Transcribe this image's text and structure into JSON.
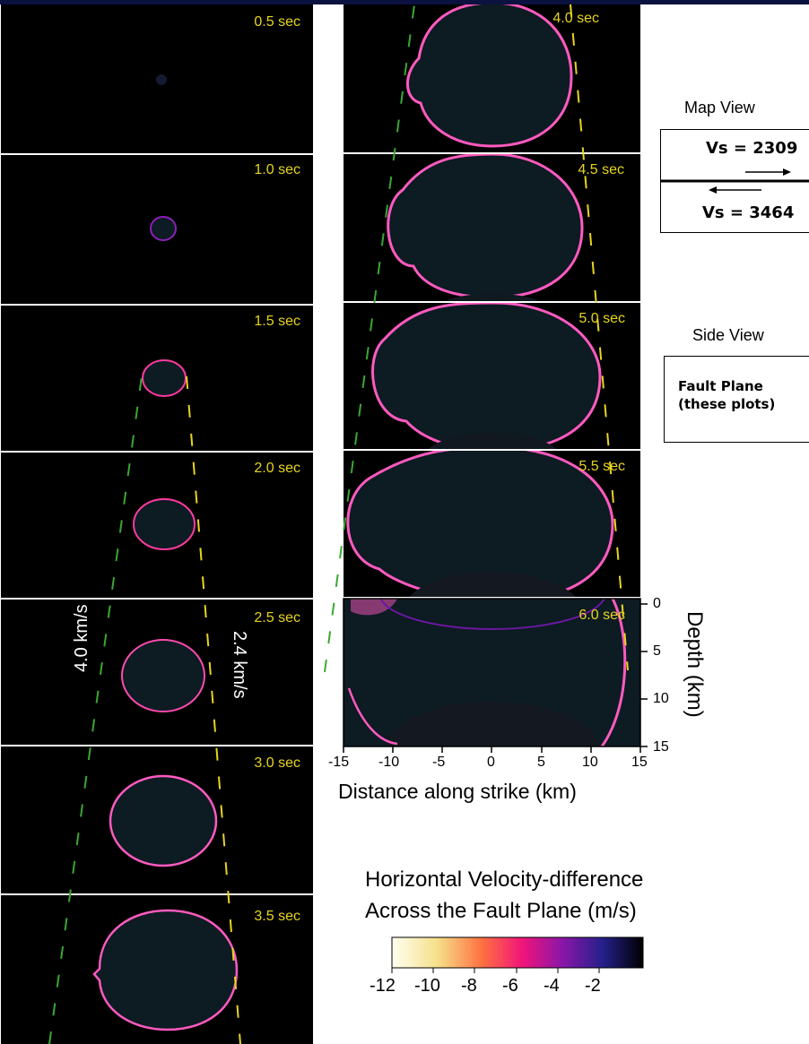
{
  "frames_left": [
    {
      "label": "0.5 sec"
    },
    {
      "label": "1.0 sec"
    },
    {
      "label": "1.5 sec"
    },
    {
      "label": "2.0 sec"
    },
    {
      "label": "2.5 sec"
    },
    {
      "label": "3.0 sec"
    },
    {
      "label": "3.5 sec"
    }
  ],
  "frames_right": [
    {
      "label": "4.0 sec"
    },
    {
      "label": "4.5 sec"
    },
    {
      "label": "5.0 sec"
    },
    {
      "label": "5.5 sec"
    },
    {
      "label": "6.0 sec"
    }
  ],
  "speed_labels": {
    "fast": "4.0 km/s",
    "slow": "2.4 km/s"
  },
  "axes": {
    "x_ticks": [
      "-15",
      "-10",
      "-5",
      "0",
      "5",
      "10",
      "15"
    ],
    "x_title": "Distance along strike (km)",
    "y_ticks": [
      "0",
      "5",
      "10",
      "15"
    ],
    "y_title": "Depth (km)"
  },
  "map_view": {
    "title": "Map View",
    "upper": "Vs = 2309",
    "lower": "Vs = 3464"
  },
  "side_view": {
    "title": "Side View",
    "line1": "Fault Plane",
    "line2": "(these plots)"
  },
  "colorbar": {
    "title_line1": "Horizontal Velocity-difference",
    "title_line2": "Across the Fault Plane (m/s)",
    "ticks": [
      "-12",
      "-10",
      "-8",
      "-6",
      "-4",
      "-2"
    ],
    "colors": [
      "#fffff2",
      "#f5e08a",
      "#ff7040",
      "#f0147a",
      "#8a16a8",
      "#24208a",
      "#000000"
    ]
  },
  "colors": {
    "frame_label": "#e8d51c",
    "fast_guide": "#3aa832",
    "slow_guide": "#e8d51c",
    "rupture_front": "#ff3aa0"
  }
}
